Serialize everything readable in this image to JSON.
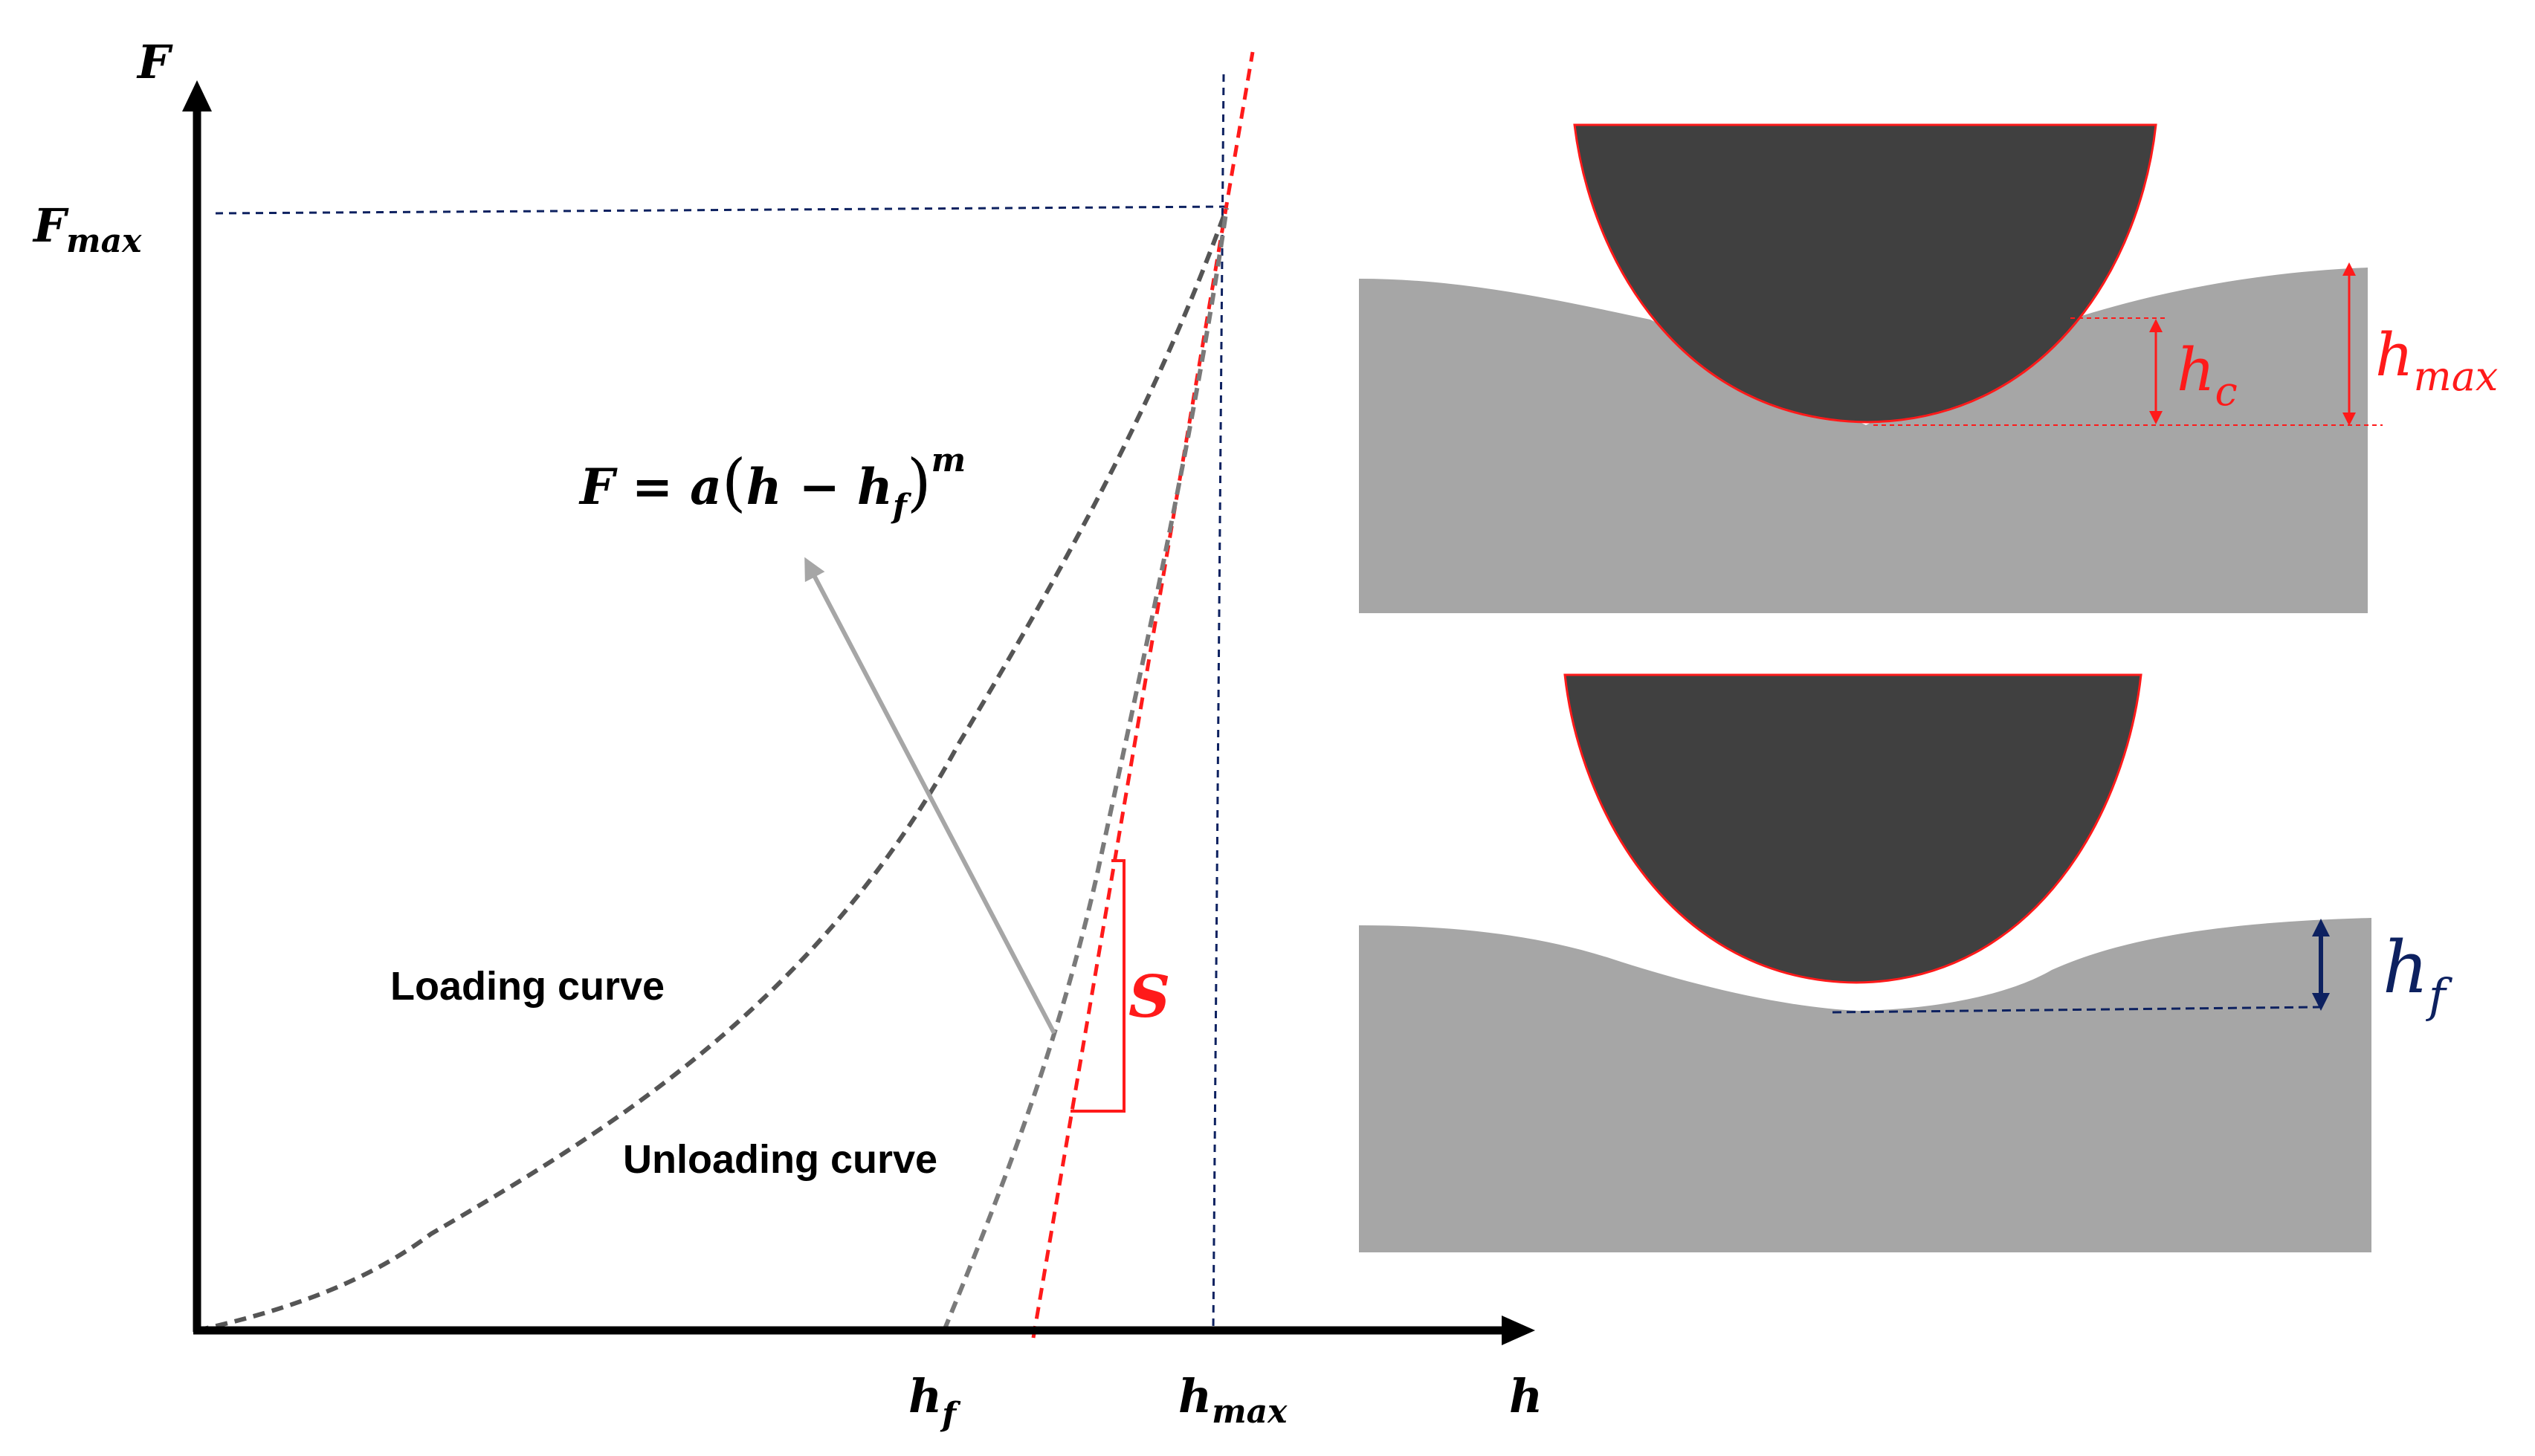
{
  "graph": {
    "y_axis_label": "F",
    "x_axis_label": "h",
    "fmax_label": {
      "main": "F",
      "sub": "max"
    },
    "hf_label": {
      "main": "h",
      "sub": "f"
    },
    "hmax_label": {
      "main": "h",
      "sub": "max"
    },
    "equation": {
      "lhs": "F = a",
      "paren_open": "(",
      "h": "h − h",
      "sub": "f",
      "paren_close": ")",
      "exp": "m"
    },
    "loading_label": "Loading curve",
    "unloading_label": "Unloading curve",
    "stiffness_label": "S"
  },
  "schematic_top": {
    "hc_label": {
      "main": "h",
      "sub": "c"
    },
    "hmax_label": {
      "main": "h",
      "sub": "max"
    }
  },
  "schematic_bottom": {
    "hf_label": {
      "main": "h",
      "sub": "f"
    }
  },
  "colors": {
    "axis": "#000000",
    "curve": "#555555",
    "tangent": "#ff1a1a",
    "guide": "#0d2160",
    "sample": "#a6a6a6",
    "indenter": "#404040",
    "arrow": "#a6a6a6"
  }
}
